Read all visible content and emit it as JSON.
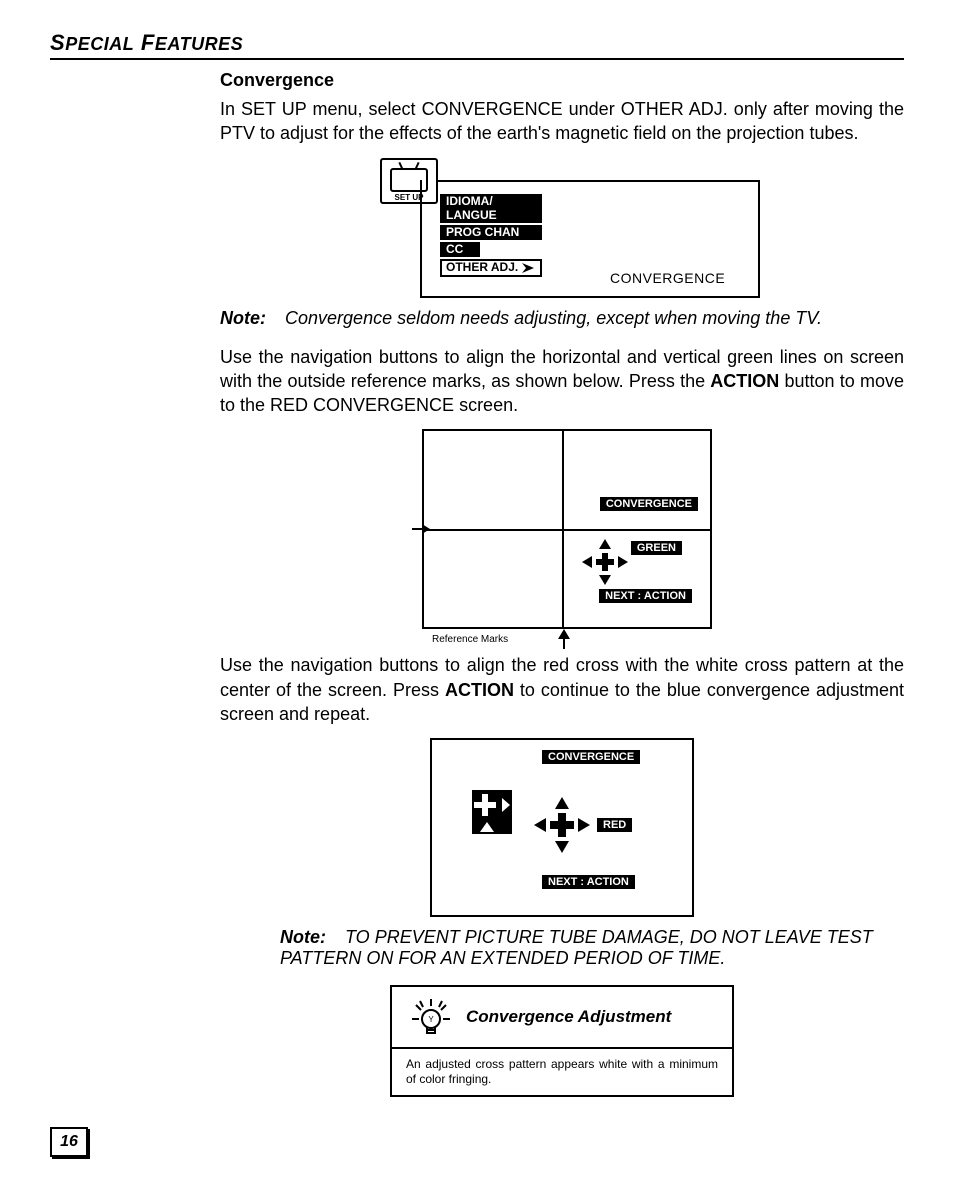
{
  "page": {
    "section_title_html": "S<span style='font-size:.82em'>PECIAL</span> F<span style='font-size:.82em'>EATURES</span>",
    "heading": "Convergence",
    "para1_html": "In SET UP menu, select CONVERGENCE under OTHER ADJ. only after moving the PTV to adjust for the effects of the earth's magnetic field on the projection tubes.",
    "note1_label": "Note:",
    "note1_text": "Convergence seldom needs adjusting, except when moving the TV.",
    "para2_html": "Use the navigation buttons to align the horizontal and vertical green lines on screen with the outside reference marks, as shown below.  Press the <b>ACTION</b> button to move to the RED CONVERGENCE screen.",
    "para3_html": "Use the navigation buttons to align the red cross with the white cross pattern at the center of the screen.  Press <b>ACTION</b> to continue to the blue convergence adjustment screen and repeat.",
    "note2_label": "Note:",
    "note2_text": "TO PREVENT PICTURE TUBE DAMAGE, DO NOT LEAVE TEST PATTERN ON FOR AN EXTENDED PERIOD OF TIME.",
    "page_number": "16"
  },
  "setup_menu": {
    "icon_label": "SET UP",
    "items": [
      "IDIOMA/",
      "LANGUE",
      "PROG CHAN",
      "CC"
    ],
    "selected": "OTHER ADJ.",
    "submenu": "CONVERGENCE"
  },
  "diagram_green": {
    "label_conv": "CONVERGENCE",
    "label_color": "GREEN",
    "label_next": "NEXT : ACTION",
    "reference": "Reference Marks",
    "colors": {
      "line": "#000000"
    }
  },
  "diagram_red": {
    "label_conv": "CONVERGENCE",
    "label_color": "RED",
    "label_next": "NEXT : ACTION"
  },
  "tip": {
    "title": "Convergence Adjustment",
    "body": "An adjusted cross pattern appears white with a minimum of color fringing."
  },
  "style": {
    "text_color": "#000000",
    "bg_color": "#ffffff",
    "body_fontsize_pt": 13,
    "heading_fontsize_pt": 13,
    "section_fontsize_pt": 16,
    "badge_bg": "#000000",
    "badge_fg": "#ffffff"
  }
}
